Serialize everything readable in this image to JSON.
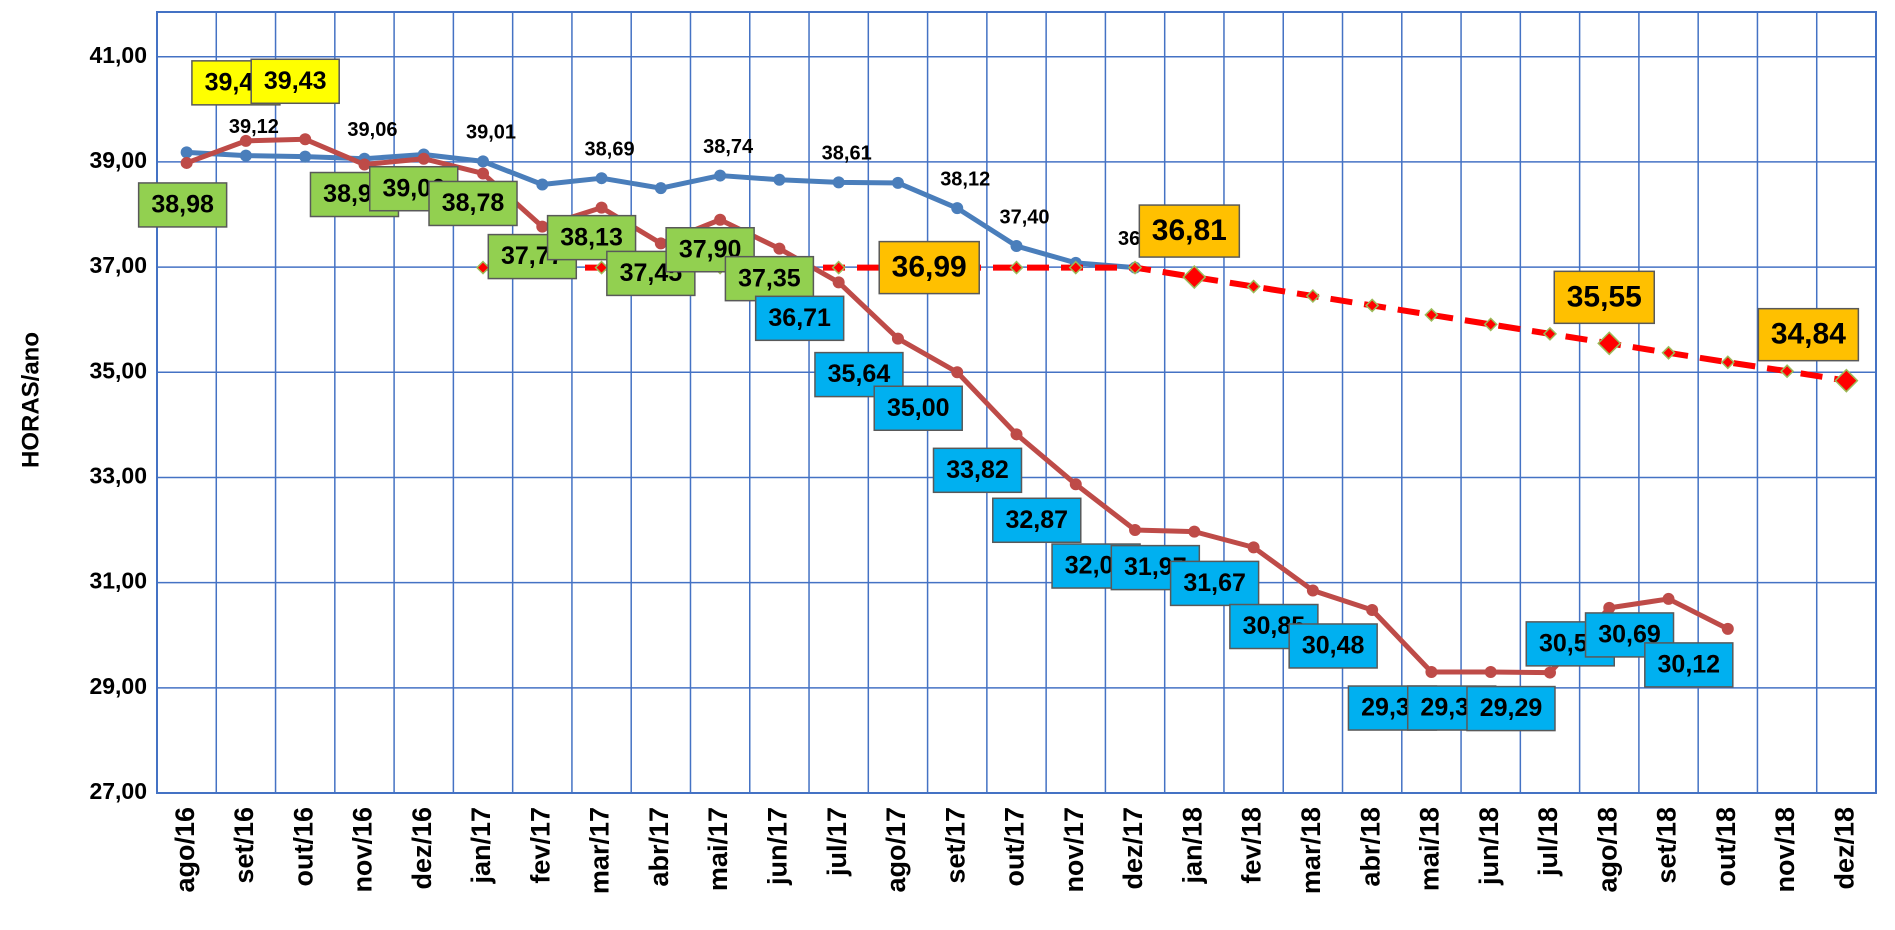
{
  "chart_data": {
    "type": "line",
    "y_label": "HORAS/ano",
    "categories": [
      "ago/16",
      "set/16",
      "out/16",
      "nov/16",
      "dez/16",
      "jan/17",
      "fev/17",
      "mar/17",
      "abr/17",
      "mai/17",
      "jun/17",
      "jul/17",
      "ago/17",
      "set/17",
      "out/17",
      "nov/17",
      "dez/17",
      "jan/18",
      "fev/18",
      "mar/18",
      "abr/18",
      "mai/18",
      "jun/18",
      "jul/18",
      "ago/18",
      "set/18",
      "out/18",
      "nov/18",
      "dez/18"
    ],
    "ylim": [
      27,
      41.85
    ],
    "yticks": [
      {
        "value": 27,
        "label": "27,00"
      },
      {
        "value": 29,
        "label": "29,00"
      },
      {
        "value": 31,
        "label": "31,00"
      },
      {
        "value": 33,
        "label": "33,00"
      },
      {
        "value": 35,
        "label": "35,00"
      },
      {
        "value": 37,
        "label": "37,00"
      },
      {
        "value": 39,
        "label": "39,00"
      },
      {
        "value": 41,
        "label": "41,00"
      }
    ],
    "grid": true,
    "series": [
      {
        "color": "#4a7ebb",
        "style": "solid",
        "values": [
          39.18,
          39.12,
          39.1,
          39.06,
          39.14,
          39.01,
          38.57,
          38.69,
          38.5,
          38.74,
          38.66,
          38.61,
          38.6,
          38.12,
          37.4,
          37.08,
          36.99,
          null,
          null,
          null,
          null,
          null,
          null,
          null,
          null,
          null,
          null,
          null,
          null
        ],
        "value_labels": [
          null,
          "39,12",
          null,
          "39,06",
          null,
          "39,01",
          null,
          "38,69",
          null,
          "38,74",
          null,
          "38,61",
          null,
          "38,12",
          "37,40",
          null,
          "36,99",
          null,
          null,
          null,
          null,
          null,
          null,
          null,
          null,
          null,
          null,
          null,
          null
        ]
      },
      {
        "color": "#be4b48",
        "style": "solid",
        "values": [
          38.98,
          39.4,
          39.43,
          38.95,
          39.06,
          38.78,
          37.77,
          38.13,
          37.45,
          37.9,
          37.35,
          36.71,
          35.64,
          35.0,
          33.82,
          32.87,
          32.0,
          31.97,
          31.67,
          30.85,
          30.48,
          29.3,
          29.3,
          29.29,
          30.52,
          30.69,
          30.12,
          null,
          null
        ],
        "value_labels": [
          "38,98",
          "39,40",
          "39,43",
          "38,95",
          "39,06",
          "38,78",
          "37,77",
          "38,13",
          "37,45",
          "37,90",
          "37,35",
          "36,71",
          "35,64",
          "35,00",
          "33,82",
          "32,87",
          "32,00",
          "31,97",
          "31,67",
          "30,85",
          "30,48",
          "29,30",
          "29,30",
          "29,29",
          "30,52",
          "30,69",
          "30,12",
          null,
          null
        ],
        "label_colors": [
          "#92d050",
          "#ffff00",
          "#ffff00",
          "#92d050",
          "#92d050",
          "#92d050",
          "#92d050",
          "#92d050",
          "#92d050",
          "#92d050",
          "#92d050",
          "#00b0f0",
          "#00b0f0",
          "#00b0f0",
          "#00b0f0",
          "#00b0f0",
          "#00b0f0",
          "#00b0f0",
          "#00b0f0",
          "#00b0f0",
          "#00b0f0",
          "#00b0f0",
          "#00b0f0",
          "#00b0f0",
          "#00b0f0",
          "#00b0f0",
          "#00b0f0",
          null,
          null
        ]
      },
      {
        "color": "#ff0000",
        "style": "dashed",
        "values": [
          null,
          null,
          null,
          null,
          null,
          36.99,
          36.99,
          36.99,
          36.99,
          36.99,
          36.99,
          36.99,
          36.99,
          36.99,
          36.99,
          36.99,
          36.99,
          36.81,
          36.63,
          36.45,
          36.27,
          36.09,
          35.91,
          35.73,
          35.55,
          35.37,
          35.19,
          35.02,
          34.84
        ],
        "value_labels": [
          null,
          null,
          null,
          null,
          null,
          null,
          null,
          null,
          null,
          null,
          null,
          null,
          null,
          "36,99",
          null,
          null,
          null,
          "36,81",
          null,
          null,
          null,
          null,
          null,
          null,
          "35,55",
          null,
          null,
          null,
          "34,84"
        ],
        "label_colors": [
          null,
          null,
          null,
          null,
          null,
          null,
          null,
          null,
          null,
          null,
          null,
          null,
          null,
          "#ffc000",
          null,
          null,
          null,
          "#ffc000",
          null,
          null,
          null,
          null,
          null,
          null,
          "#ffc000",
          null,
          null,
          null,
          "#ffc000"
        ]
      }
    ]
  }
}
